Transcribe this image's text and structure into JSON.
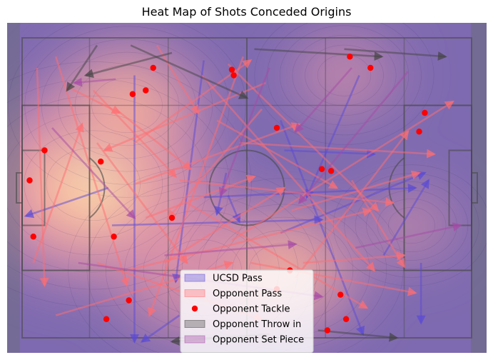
{
  "chart_data": {
    "type": "heatmap",
    "title": "Heat Map of Shots Conceded Origins",
    "pitch": {
      "length": 120,
      "width": 80
    },
    "colors": {
      "ucsd_pass": "#5a4ad6",
      "opponent_pass": "#ff6e72",
      "opponent_tackle": "#ff0000",
      "opponent_throw_in": "#444444",
      "opponent_set_piece": "#a64aa6",
      "pitch_lines": "#4a4a4a"
    },
    "legend": {
      "placement": "bottom-center",
      "entries": [
        {
          "key": "ucsd_pass",
          "label": "UCSD Pass",
          "marker": "patch"
        },
        {
          "key": "opponent_pass",
          "label": "Opponent Pass",
          "marker": "patch"
        },
        {
          "key": "opponent_tackle",
          "label": "Opponent Tackle",
          "marker": "dot"
        },
        {
          "key": "opponent_throw_in",
          "label": "Opponent Throw in",
          "marker": "patch"
        },
        {
          "key": "opponent_set_piece",
          "label": "Opponent Set Piece",
          "marker": "patch"
        }
      ]
    },
    "density_peaks": [
      {
        "x": 19,
        "y": 39,
        "weight": 1.0,
        "spread": 12
      },
      {
        "x": 28,
        "y": 18,
        "weight": 0.55,
        "spread": 11
      },
      {
        "x": 48,
        "y": 62,
        "weight": 0.45,
        "spread": 13
      },
      {
        "x": 70,
        "y": 62,
        "weight": 0.55,
        "spread": 11
      },
      {
        "x": 86,
        "y": 10,
        "weight": 0.2,
        "spread": 10
      },
      {
        "x": 104,
        "y": 50,
        "weight": 0.15,
        "spread": 9
      }
    ],
    "series": [
      {
        "name": "Opponent Tackle",
        "key": "opponent_tackle",
        "points": [
          [
            35,
            8
          ],
          [
            29.5,
            15
          ],
          [
            33,
            14
          ],
          [
            56,
            8.5
          ],
          [
            56.5,
            10
          ],
          [
            87.5,
            5
          ],
          [
            93,
            8
          ],
          [
            107.5,
            20
          ],
          [
            106,
            25
          ],
          [
            68,
            24
          ],
          [
            80,
            35
          ],
          [
            82.5,
            35.5
          ],
          [
            6,
            30
          ],
          [
            2,
            38
          ],
          [
            21,
            33
          ],
          [
            40,
            48
          ],
          [
            24.5,
            53
          ],
          [
            3,
            53
          ],
          [
            28.5,
            70
          ],
          [
            22.5,
            75
          ],
          [
            71.5,
            62
          ],
          [
            68,
            67
          ],
          [
            85,
            68.5
          ],
          [
            86.5,
            75
          ],
          [
            81.5,
            78
          ]
        ]
      },
      {
        "name": "UCSD Pass",
        "key": "ucsd_pass",
        "segments": [
          [
            [
              48.5,
              6
            ],
            [
              41,
              65
            ]
          ],
          [
            [
              30,
              10
            ],
            [
              30,
              81
            ]
          ],
          [
            [
              23,
              40
            ],
            [
              1,
              47.5
            ]
          ],
          [
            [
              24,
              50
            ],
            [
              80,
              48.5
            ]
          ],
          [
            [
              48.5,
              42.5
            ],
            [
              105,
              40
            ]
          ],
          [
            [
              69,
              22
            ],
            [
              91,
              79
            ]
          ],
          [
            [
              69,
              52
            ],
            [
              107.5,
              36
            ]
          ],
          [
            [
              96.5,
              58
            ],
            [
              108.5,
              38
            ]
          ],
          [
            [
              106.5,
              60
            ],
            [
              106.5,
              76
            ]
          ],
          [
            [
              90,
              10
            ],
            [
              76,
              42.5
            ]
          ],
          [
            [
              70,
              30
            ],
            [
              94,
              31
            ]
          ],
          [
            [
              55,
              42
            ],
            [
              58,
              49
            ]
          ],
          [
            [
              42,
              74
            ],
            [
              32,
              81
            ]
          ],
          [
            [
              54.5,
              36
            ],
            [
              52,
              47
            ]
          ]
        ]
      },
      {
        "name": "Opponent Pass",
        "key": "opponent_pass",
        "segments": [
          [
            [
              9,
              5
            ],
            [
              28,
              66
            ]
          ],
          [
            [
              36,
              2
            ],
            [
              47,
              20
            ]
          ],
          [
            [
              59,
              5
            ],
            [
              34,
              74
            ]
          ],
          [
            [
              4,
              8
            ],
            [
              6,
              66
            ]
          ],
          [
            [
              12,
              13
            ],
            [
              26,
              20
            ]
          ],
          [
            [
              20,
              28
            ],
            [
              44,
              60
            ]
          ],
          [
            [
              3,
              60
            ],
            [
              16,
              23
            ]
          ],
          [
            [
              19,
              14
            ],
            [
              41,
              37
            ]
          ],
          [
            [
              28,
              62
            ],
            [
              93,
              46
            ]
          ],
          [
            [
              30,
              39
            ],
            [
              74,
              23
            ]
          ],
          [
            [
              33,
              48
            ],
            [
              62,
              37
            ]
          ],
          [
            [
              20,
              60
            ],
            [
              64,
              75
            ]
          ],
          [
            [
              48,
              10
            ],
            [
              94,
              62
            ]
          ],
          [
            [
              56,
              54
            ],
            [
              115,
              17
            ]
          ],
          [
            [
              58,
              28
            ],
            [
              110,
              31
            ]
          ],
          [
            [
              61,
              60
            ],
            [
              105,
              68
            ]
          ],
          [
            [
              73,
              64
            ],
            [
              103,
              25
            ]
          ],
          [
            [
              72,
              46
            ],
            [
              106,
              36
            ]
          ],
          [
            [
              42,
              38
            ],
            [
              99,
              44
            ]
          ],
          [
            [
              30,
              28
            ],
            [
              61,
              6
            ]
          ],
          [
            [
              64,
              19
            ],
            [
              39,
              48
            ]
          ],
          [
            [
              65,
              12
            ],
            [
              22,
              30
            ]
          ],
          [
            [
              9,
              74
            ],
            [
              56,
              60
            ]
          ],
          [
            [
              88,
              38
            ],
            [
              102,
              61
            ]
          ],
          [
            [
              55,
              7
            ],
            [
              95,
              46
            ]
          ],
          [
            [
              52,
              22
            ],
            [
              84,
              40
            ]
          ],
          [
            [
              38,
              60
            ],
            [
              70,
              40
            ]
          ],
          [
            [
              75,
              60
            ],
            [
              102,
              58
            ]
          ],
          [
            [
              25,
              19
            ],
            [
              45,
              35
            ]
          ],
          [
            [
              44,
              44
            ],
            [
              92,
              72
            ]
          ]
        ]
      },
      {
        "name": "Opponent Throw in",
        "key": "opponent_throw_in",
        "segments": [
          [
            [
              40,
              4
            ],
            [
              17,
              10
            ]
          ],
          [
            [
              29,
              2
            ],
            [
              60,
              16
            ]
          ],
          [
            [
              86,
              3
            ],
            [
              113,
              5
            ]
          ],
          [
            [
              20,
              2
            ],
            [
              12,
              14
            ]
          ],
          [
            [
              62,
              3
            ],
            [
              96,
              5
            ]
          ],
          [
            [
              79,
              78
            ],
            [
              100,
              80
            ]
          ],
          [
            [
              66,
              79
            ],
            [
              40,
              81
            ]
          ]
        ]
      },
      {
        "name": "Opponent Set Piece",
        "key": "opponent_set_piece",
        "segments": [
          [
            [
              25,
              11
            ],
            [
              14,
              12
            ]
          ],
          [
            [
              88,
              8
            ],
            [
              73,
              25
            ]
          ],
          [
            [
              66,
              8
            ],
            [
              53,
              42
            ]
          ],
          [
            [
              89,
              56
            ],
            [
              117,
              50
            ]
          ],
          [
            [
              15,
              60
            ],
            [
              80,
              69
            ]
          ],
          [
            [
              38,
              58
            ],
            [
              73,
              55
            ]
          ],
          [
            [
              8,
              24
            ],
            [
              30,
              48
            ]
          ],
          [
            [
              103,
              9
            ],
            [
              74,
              44
            ]
          ]
        ]
      }
    ]
  }
}
